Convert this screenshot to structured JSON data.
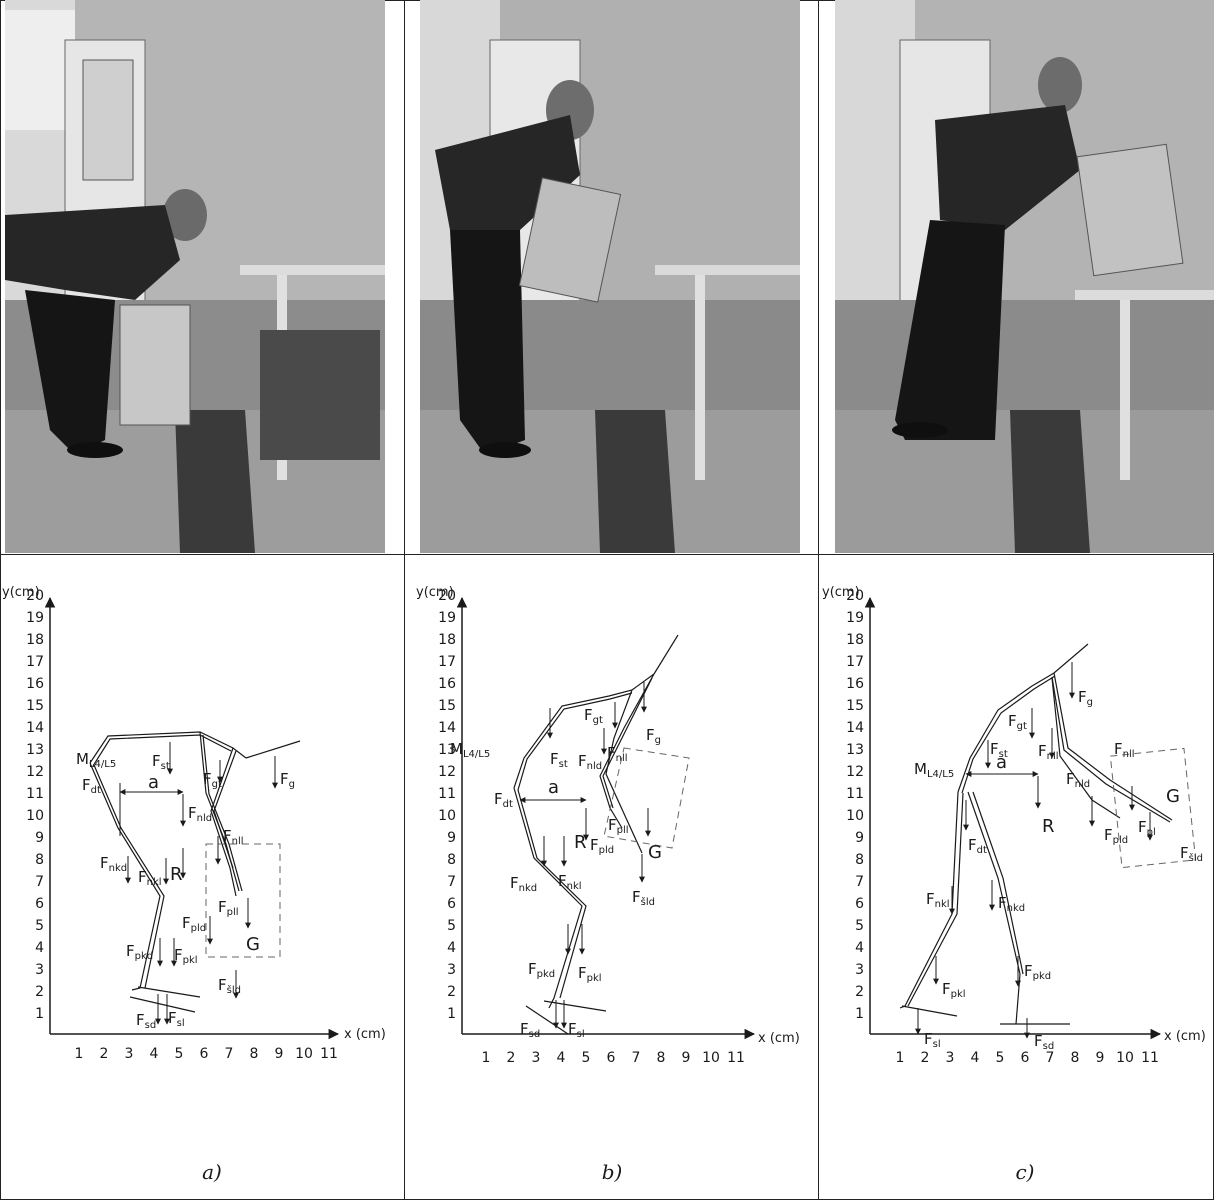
{
  "photos": [
    {
      "alt": "Worker bending to lift a cardboard box from the floor"
    },
    {
      "alt": "Worker raising the box while turning toward the table"
    },
    {
      "alt": "Worker placing the box onto the table"
    }
  ],
  "panels": [
    {
      "caption": "a)",
      "y_axis_title": "y(cm)",
      "x_axis_title": "x (cm)",
      "y_ticks": [
        "1",
        "2",
        "3",
        "4",
        "5",
        "6",
        "7",
        "8",
        "9",
        "10",
        "11",
        "12",
        "13",
        "14",
        "15",
        "16",
        "17",
        "18",
        "19",
        "20"
      ],
      "x_ticks": [
        "1",
        "2",
        "3",
        "4",
        "5",
        "6",
        "7",
        "8",
        "9",
        "10",
        "11"
      ],
      "labels": {
        "moment": {
          "main": "M",
          "sub": "L4/L5"
        },
        "a": "a",
        "R": "R",
        "G": "G",
        "Fst": {
          "main": "F",
          "sub": "st"
        },
        "Fdt": {
          "main": "F",
          "sub": "dt"
        },
        "Fgt": {
          "main": "F",
          "sub": "gt"
        },
        "Fg": {
          "main": "F",
          "sub": "g"
        },
        "Fnld": {
          "main": "F",
          "sub": "nld"
        },
        "Fnll": {
          "main": "F",
          "sub": "nll"
        },
        "Fnkd": {
          "main": "F",
          "sub": "nkd"
        },
        "Fnkl": {
          "main": "F",
          "sub": "nkl"
        },
        "Fpll": {
          "main": "F",
          "sub": "pll"
        },
        "Fpld": {
          "main": "F",
          "sub": "pld"
        },
        "Fpkd": {
          "main": "F",
          "sub": "pkd"
        },
        "Fpkl": {
          "main": "F",
          "sub": "pkl"
        },
        "Fsld": {
          "main": "F",
          "sub": "šld"
        },
        "Fsd": {
          "main": "F",
          "sub": "sd"
        },
        "Fsl": {
          "main": "F",
          "sub": "sl"
        }
      }
    },
    {
      "caption": "b)",
      "y_axis_title": "y(cm)",
      "x_axis_title": "x (cm)",
      "y_ticks": [
        "1",
        "2",
        "3",
        "4",
        "5",
        "6",
        "7",
        "8",
        "9",
        "10",
        "11",
        "12",
        "13",
        "14",
        "15",
        "16",
        "17",
        "18",
        "19",
        "20"
      ],
      "x_ticks": [
        "1",
        "2",
        "3",
        "4",
        "5",
        "6",
        "7",
        "8",
        "9",
        "10",
        "11"
      ],
      "labels": {
        "moment": {
          "main": "M",
          "sub": "L4/L5"
        },
        "a": "a",
        "R": "R",
        "G": "G",
        "Fst": {
          "main": "F",
          "sub": "st"
        },
        "Fdt": {
          "main": "F",
          "sub": "dt"
        },
        "Fgt": {
          "main": "F",
          "sub": "gt"
        },
        "Fg": {
          "main": "F",
          "sub": "g"
        },
        "Fnld": {
          "main": "F",
          "sub": "nld"
        },
        "Fnll": {
          "main": "F",
          "sub": "nll"
        },
        "Fnkd": {
          "main": "F",
          "sub": "nkd"
        },
        "Fnkl": {
          "main": "F",
          "sub": "nkl"
        },
        "Fpll": {
          "main": "F",
          "sub": "pll"
        },
        "Fpld": {
          "main": "F",
          "sub": "pld"
        },
        "Fpkd": {
          "main": "F",
          "sub": "pkd"
        },
        "Fpkl": {
          "main": "F",
          "sub": "pkl"
        },
        "Fsld": {
          "main": "F",
          "sub": "šld"
        },
        "Fsd": {
          "main": "F",
          "sub": "sd"
        },
        "Fsl": {
          "main": "F",
          "sub": "sl"
        }
      }
    },
    {
      "caption": "c)",
      "y_axis_title": "y(cm)",
      "x_axis_title": "x (cm)",
      "y_ticks": [
        "1",
        "2",
        "3",
        "4",
        "5",
        "6",
        "7",
        "8",
        "9",
        "10",
        "11",
        "12",
        "13",
        "14",
        "15",
        "16",
        "17",
        "18",
        "19",
        "20"
      ],
      "x_ticks": [
        "1",
        "2",
        "3",
        "4",
        "5",
        "6",
        "7",
        "8",
        "9",
        "10",
        "11"
      ],
      "labels": {
        "moment": {
          "main": "M",
          "sub": "L4/L5"
        },
        "a": "a",
        "R": "R",
        "G": "G",
        "Fst": {
          "main": "F",
          "sub": "st"
        },
        "Fdt": {
          "main": "F",
          "sub": "dt"
        },
        "Fgt": {
          "main": "F",
          "sub": "gt"
        },
        "Fg": {
          "main": "F",
          "sub": "g"
        },
        "Fnld": {
          "main": "F",
          "sub": "nld"
        },
        "Fnll": {
          "main": "F",
          "sub": "nll"
        },
        "Fnkd": {
          "main": "F",
          "sub": "nkd"
        },
        "Fnkl": {
          "main": "F",
          "sub": "nkl"
        },
        "Fpl": {
          "main": "F",
          "sub": "pl"
        },
        "Fpld": {
          "main": "F",
          "sub": "pld"
        },
        "Fpkd": {
          "main": "F",
          "sub": "pkd"
        },
        "Fpkl": {
          "main": "F",
          "sub": "pkl"
        },
        "Fsld": {
          "main": "F",
          "sub": "šld"
        },
        "Fsd": {
          "main": "F",
          "sub": "sd"
        },
        "Fsl": {
          "main": "F",
          "sub": "sl"
        }
      }
    }
  ]
}
